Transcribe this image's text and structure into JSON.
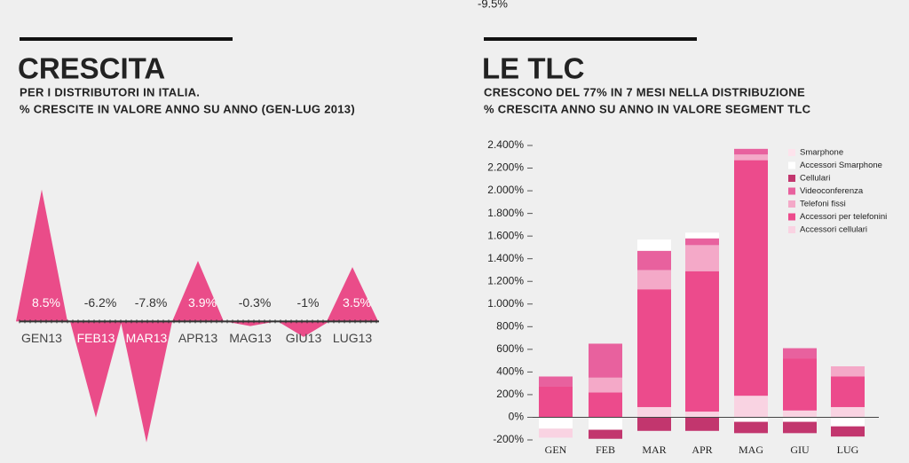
{
  "stray_label": "-9.5%",
  "chart_data": [
    {
      "type": "area",
      "title": "CRESCITA",
      "subtitle": [
        "PER I DISTRIBUTORI IN ITALIA.",
        "% CRESCITE IN VALORE ANNO SU ANNO (GEN-LUG 2013)"
      ],
      "categories": [
        "GEN13",
        "FEB13",
        "MAR13",
        "APR13",
        "MAG13",
        "GIU13",
        "LUG13"
      ],
      "values": [
        8.5,
        -6.2,
        -7.8,
        3.9,
        -0.3,
        -1,
        3.5
      ],
      "value_labels": [
        "8.5%",
        "-6.2%",
        "-7.8%",
        "3.9%",
        "-0.3%",
        "-1%",
        "3.5%"
      ],
      "color": "#ea4c89",
      "ylim": [
        -8.5,
        9
      ]
    },
    {
      "type": "stacked_bar",
      "title": "LE TLC",
      "subtitle": [
        "CRESCONO DEL 77% IN 7 MESI NELLA DISTRIBUZIONE",
        "% CRESCITA ANNO SU ANNO IN VALORE SEGMENT TLC"
      ],
      "categories": [
        "GEN",
        "FEB",
        "MAR",
        "APR",
        "MAG",
        "GIU",
        "LUG"
      ],
      "series": [
        {
          "name": "Smarphone",
          "color": "#fde3ec",
          "values": [
            0,
            0,
            0,
            0,
            0,
            0,
            0
          ]
        },
        {
          "name": "Accessori Smarphone",
          "color": "#ffffff",
          "values": [
            -100,
            -110,
            100,
            50,
            -40,
            -40,
            -80
          ]
        },
        {
          "name": "Cellulari",
          "color": "#c2366e",
          "values": [
            0,
            -80,
            -120,
            -120,
            -100,
            -100,
            -90
          ]
        },
        {
          "name": "Videoconferenza",
          "color": "#e8619e",
          "values": [
            90,
            300,
            170,
            60,
            50,
            90,
            0
          ]
        },
        {
          "name": "Telefoni fissi",
          "color": "#f4a9c8",
          "values": [
            0,
            130,
            170,
            230,
            50,
            0,
            90
          ]
        },
        {
          "name": "Accessori per telefonini",
          "color": "#ec4b8c",
          "values": [
            270,
            220,
            1040,
            1240,
            2080,
            460,
            270
          ]
        },
        {
          "name": "Accessori cellulari",
          "color": "#f9d3e2",
          "values": [
            -80,
            0,
            90,
            50,
            190,
            60,
            90
          ]
        }
      ],
      "ylim": [
        -200,
        2400
      ],
      "yticks": [
        {
          "value": -200,
          "label": "-200%"
        },
        {
          "value": 0,
          "label": "0%"
        },
        {
          "value": 200,
          "label": "200%"
        },
        {
          "value": 400,
          "label": "400%"
        },
        {
          "value": 600,
          "label": "600%"
        },
        {
          "value": 800,
          "label": "800%"
        },
        {
          "value": 1000,
          "label": "1.000%"
        },
        {
          "value": 1200,
          "label": "1.200%"
        },
        {
          "value": 1400,
          "label": "1.400%"
        },
        {
          "value": 1600,
          "label": "1.600%"
        },
        {
          "value": 1800,
          "label": "1.800%"
        },
        {
          "value": 2000,
          "label": "2.000%"
        },
        {
          "value": 2200,
          "label": "2.200%"
        },
        {
          "value": 2400,
          "label": "2.400%"
        }
      ]
    }
  ]
}
